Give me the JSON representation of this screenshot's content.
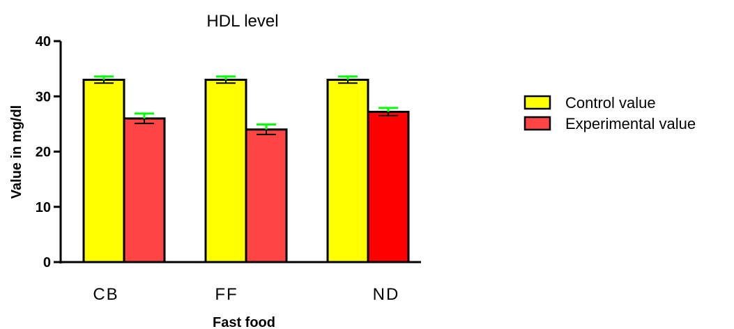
{
  "chart_data": {
    "type": "bar",
    "title": "HDL level",
    "xlabel": "Fast food",
    "ylabel": "Value in mg/dl",
    "categories": [
      "CB",
      "FF",
      "ND"
    ],
    "ylim": [
      0,
      40
    ],
    "yticks": [
      0,
      10,
      20,
      30,
      40
    ],
    "grid": false,
    "legend_position": "right",
    "series": [
      {
        "name": "Control value",
        "values": [
          33,
          33,
          33
        ],
        "errors": [
          0.6,
          0.6,
          0.6
        ],
        "color": "#ffff00"
      },
      {
        "name": "Experimental value",
        "values": [
          26,
          24,
          27.2
        ],
        "errors": [
          0.9,
          0.9,
          0.7
        ],
        "colors": [
          "#ff4444",
          "#ff4444",
          "#ff0000"
        ],
        "color": "#ff4444"
      }
    ],
    "error_bar_color": "#00ff00"
  }
}
